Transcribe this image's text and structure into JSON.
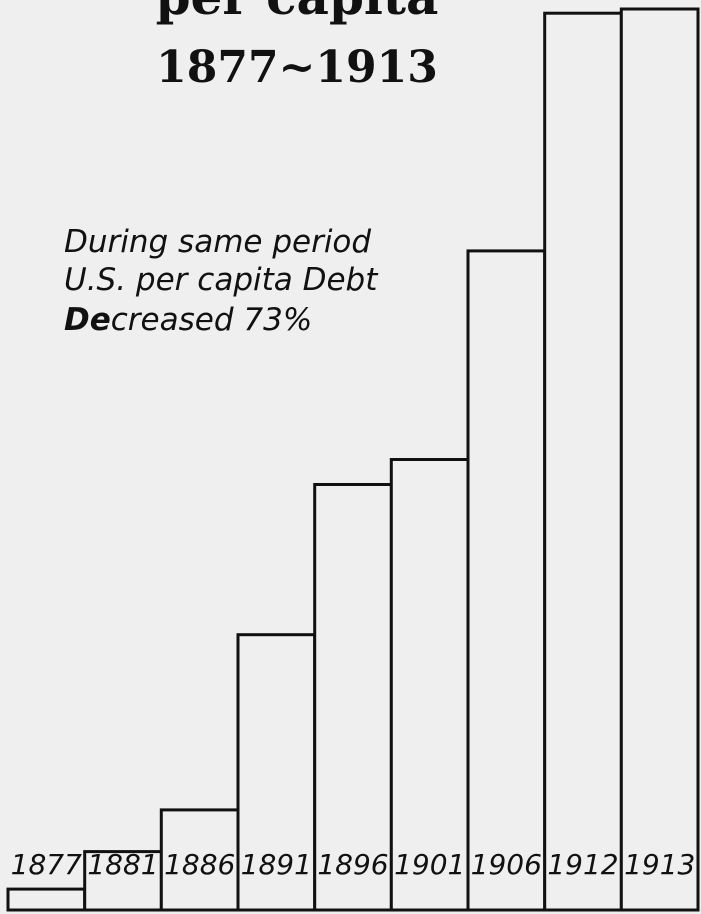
{
  "chart_data": {
    "type": "bar",
    "title_line1": "per capita",
    "title_line2": "1877~1913",
    "annotation": {
      "line1": "During same period",
      "line2": "U.S. per capita Debt",
      "line3_emph": "De",
      "line3_rest": "creased 73%"
    },
    "categories": [
      "1877",
      "1881",
      "1886",
      "1891",
      "1896",
      "1901",
      "1906",
      "1912",
      "1913"
    ],
    "values": [
      5,
      14,
      24,
      66,
      102,
      108,
      158,
      215,
      216
    ],
    "ylim": [
      0,
      216
    ],
    "grid": false,
    "legend": "none",
    "colors": {
      "bar_fill": "#efefef",
      "bar_stroke": "#111111",
      "background": "#efefef"
    }
  }
}
